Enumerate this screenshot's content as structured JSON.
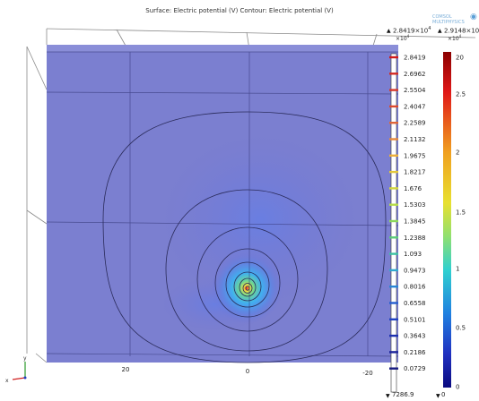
{
  "title": "Surface: Electric potential (V)  Contour: Electric potential (V)",
  "logo_text": "COMSOL MULTIPHYSICS",
  "surface_legend": {
    "max_label": "2.8419×10",
    "max_exp": "4",
    "scale_exp": "×10",
    "scale_exp_power": "4",
    "min_label": "7286.9",
    "levels": [
      "2.8419",
      "2.6962",
      "2.5504",
      "2.4047",
      "2.2589",
      "2.1132",
      "1.9675",
      "1.8217",
      "1.676",
      "1.5303",
      "1.3845",
      "1.2388",
      "1.093",
      "0.9473",
      "0.8016",
      "0.6558",
      "0.5101",
      "0.3643",
      "0.2186",
      "0.0729"
    ],
    "level_colors": [
      "#d11a1a",
      "#d42a22",
      "#d8392a",
      "#dc4a30",
      "#e06638",
      "#e88a3c",
      "#eeb03a",
      "#e4c83a",
      "#d2d63e",
      "#b6dc48",
      "#8cd85c",
      "#5ccc7a",
      "#3cc2a4",
      "#32a9d0",
      "#2a86d6",
      "#245ed0",
      "#2042c2",
      "#1c30b0",
      "#1b239a",
      "#161a80"
    ]
  },
  "contour_legend": {
    "max_label": "2.9148×10",
    "max_exp": "4",
    "scale_exp": "×10",
    "scale_exp_power": "4",
    "min_label": "0",
    "ticks": [
      "20",
      "2.5",
      "2",
      "1.5",
      "1",
      "0.5",
      "0"
    ]
  },
  "x_axis_ticks": [
    "20",
    "0",
    "-20"
  ],
  "axis_triad": {
    "x_label": "x",
    "y_label": "y"
  }
}
